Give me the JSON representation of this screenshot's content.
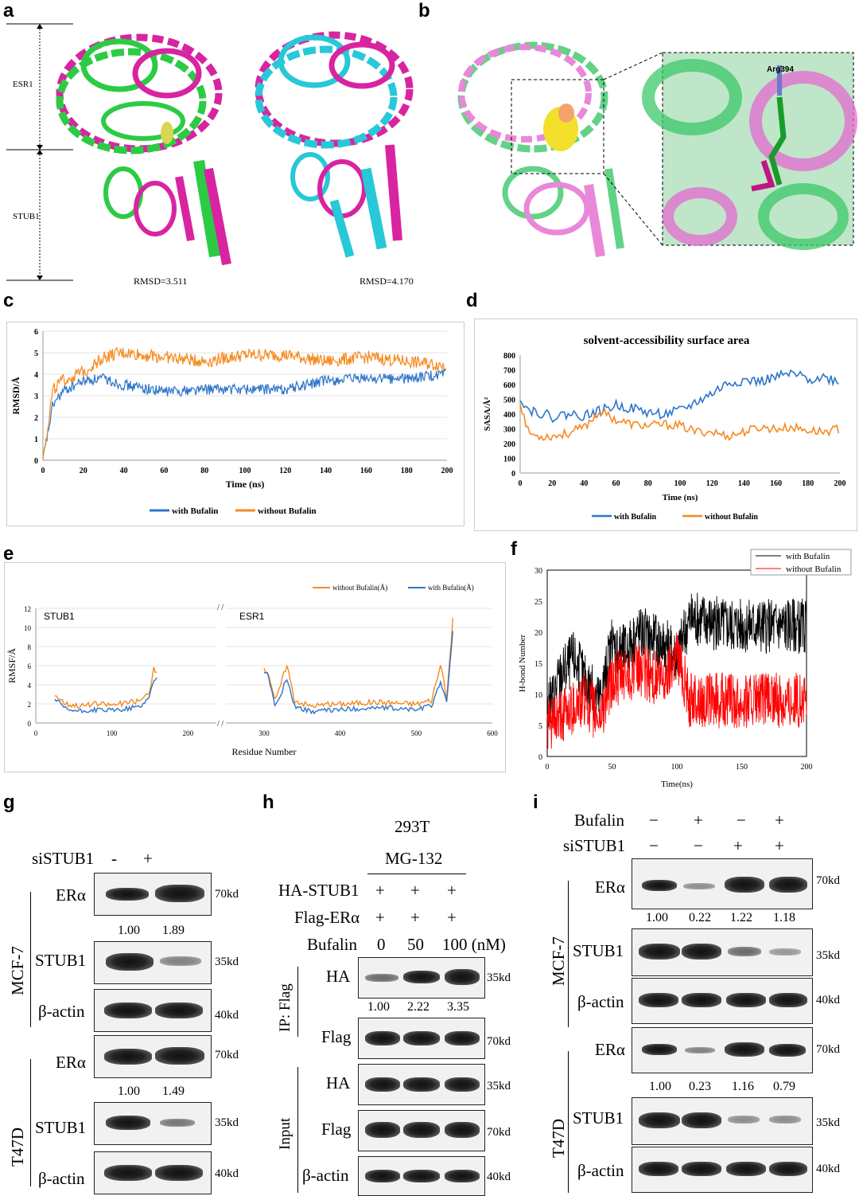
{
  "panels": {
    "a": "a",
    "b": "b",
    "c": "c",
    "d": "d",
    "e": "e",
    "f": "f",
    "g": "g",
    "h": "h",
    "i": "i"
  },
  "panel_a": {
    "label_esr1": "ESR1",
    "label_stub1": "STUB1",
    "rmsd_left": "RMSD=3.511",
    "rmsd_right": "RMSD=4.170"
  },
  "panel_b": {
    "residue": "Arg394"
  },
  "colors": {
    "blue": "#2e75c9",
    "orange": "#f58a1f",
    "black": "#000000",
    "red": "#ff0000",
    "green": "#21c93a",
    "magenta": "#d6199c",
    "cyan": "#1cc6d6"
  },
  "chart_data": [
    {
      "id": "c",
      "type": "line",
      "title": "",
      "xlabel": "Time (ns)",
      "ylabel": "RMSD/Å",
      "xlim": [
        0,
        200
      ],
      "ylim": [
        0,
        6
      ],
      "xticks": [
        0,
        20,
        40,
        60,
        80,
        100,
        120,
        140,
        160,
        180,
        200
      ],
      "yticks": [
        0,
        1,
        2,
        3,
        4,
        5,
        6
      ],
      "series": [
        {
          "name": "with Bufalin",
          "x": [
            0,
            5,
            10,
            20,
            30,
            40,
            60,
            80,
            100,
            120,
            140,
            160,
            180,
            200
          ],
          "y": [
            0,
            2.6,
            3.2,
            3.7,
            3.8,
            3.5,
            3.2,
            3.3,
            3.3,
            3.3,
            3.7,
            3.8,
            3.8,
            4.0
          ]
        },
        {
          "name": "without Bufalin",
          "x": [
            0,
            5,
            10,
            20,
            30,
            40,
            60,
            80,
            100,
            120,
            140,
            160,
            180,
            200
          ],
          "y": [
            0,
            3.3,
            3.7,
            4.1,
            4.8,
            5.0,
            4.8,
            4.6,
            4.9,
            4.9,
            4.6,
            4.8,
            4.6,
            4.4
          ]
        }
      ]
    },
    {
      "id": "d",
      "type": "line",
      "title": "solvent-accessibility surface area",
      "xlabel": "Time (ns)",
      "ylabel": "SASA/Å²",
      "xlim": [
        0,
        200
      ],
      "ylim": [
        0,
        800
      ],
      "xticks": [
        0,
        20,
        40,
        60,
        80,
        100,
        120,
        140,
        160,
        180,
        200
      ],
      "yticks": [
        0,
        100,
        200,
        300,
        400,
        500,
        600,
        700,
        800
      ],
      "series": [
        {
          "name": "with Bufalin",
          "x": [
            0,
            5,
            10,
            20,
            30,
            40,
            50,
            60,
            70,
            80,
            90,
            100,
            110,
            120,
            130,
            140,
            150,
            160,
            170,
            180,
            190,
            200
          ],
          "y": [
            520,
            430,
            420,
            380,
            400,
            390,
            420,
            460,
            440,
            410,
            400,
            420,
            480,
            540,
            610,
            630,
            620,
            650,
            670,
            640,
            650,
            620
          ]
        },
        {
          "name": "without Bufalin",
          "x": [
            0,
            5,
            10,
            20,
            30,
            40,
            50,
            60,
            70,
            80,
            90,
            100,
            110,
            120,
            130,
            140,
            150,
            160,
            170,
            180,
            190,
            200
          ],
          "y": [
            480,
            280,
            250,
            250,
            270,
            310,
            420,
            360,
            330,
            320,
            330,
            320,
            280,
            280,
            250,
            280,
            310,
            300,
            310,
            290,
            280,
            300
          ]
        }
      ]
    },
    {
      "id": "e",
      "type": "line",
      "title": "",
      "xlabel": "Residue Number",
      "ylabel": "RMSF/Å",
      "xlim": [
        0,
        600
      ],
      "ylim": [
        0,
        12
      ],
      "xticks": [
        0,
        100,
        200,
        300,
        400,
        500,
        600
      ],
      "yticks": [
        0,
        2,
        4,
        6,
        8,
        10,
        12
      ],
      "segment_labels": [
        "STUB1",
        "ESR1"
      ],
      "series": [
        {
          "name": "without Bufalin(Å)",
          "x": [
            25,
            40,
            60,
            80,
            100,
            120,
            140,
            150,
            155,
            305,
            315,
            330,
            340,
            360,
            400,
            450,
            500,
            520,
            532,
            540,
            548
          ],
          "y": [
            3.0,
            2.0,
            1.8,
            2.0,
            1.9,
            2.1,
            2.4,
            3.5,
            5.6,
            5.5,
            2.2,
            6.2,
            2.4,
            1.8,
            2.0,
            2.2,
            2.0,
            2.4,
            6.0,
            2.5,
            10.8
          ]
        },
        {
          "name": "with Bufalin(Å)",
          "x": [
            25,
            40,
            60,
            80,
            100,
            120,
            140,
            150,
            155,
            305,
            315,
            330,
            340,
            360,
            400,
            450,
            500,
            520,
            532,
            540,
            548
          ],
          "y": [
            2.5,
            1.4,
            1.2,
            1.4,
            1.3,
            1.5,
            1.8,
            3.0,
            4.6,
            5.2,
            1.6,
            4.7,
            1.8,
            1.2,
            1.4,
            1.6,
            1.4,
            1.8,
            4.4,
            2.0,
            9.6
          ]
        }
      ]
    },
    {
      "id": "f",
      "type": "line",
      "title": "",
      "xlabel": "Time(ns)",
      "ylabel": "H-bond Number",
      "xlim": [
        0,
        200
      ],
      "ylim": [
        0,
        30
      ],
      "xticks": [
        0,
        50,
        100,
        150,
        200
      ],
      "yticks": [
        0,
        5,
        10,
        15,
        20,
        25,
        30
      ],
      "series": [
        {
          "name": "with Bufalin",
          "x": [
            0,
            10,
            20,
            30,
            40,
            50,
            60,
            70,
            80,
            90,
            100,
            110,
            120,
            140,
            160,
            180,
            200
          ],
          "y": [
            7,
            13,
            16,
            12,
            9,
            18,
            17,
            20,
            19,
            18,
            16,
            22,
            22,
            21,
            21,
            21,
            21
          ]
        },
        {
          "name": "without Bufalin",
          "x": [
            0,
            10,
            20,
            30,
            40,
            50,
            60,
            70,
            80,
            90,
            100,
            110,
            120,
            140,
            160,
            180,
            200
          ],
          "y": [
            5,
            6,
            8,
            9,
            6,
            12,
            13,
            14,
            13,
            12,
            17,
            9,
            9,
            9,
            9,
            9,
            9
          ]
        }
      ]
    }
  ],
  "panel_g": {
    "treat_label": "siSTUB1",
    "treat": [
      "-",
      "+"
    ],
    "lanes_quant_mcf7": [
      "1.00",
      "1.89"
    ],
    "lanes_quant_t47d": [
      "1.00",
      "1.49"
    ],
    "cell_mcf7": "MCF-7",
    "cell_t47d": "T47D",
    "rows": [
      {
        "protein": "ERα",
        "kd": "70kd"
      },
      {
        "protein": "STUB1",
        "kd": "35kd"
      },
      {
        "protein": "β-actin",
        "kd": "40kd"
      },
      {
        "protein": "ERα",
        "kd": "70kd"
      },
      {
        "protein": "STUB1",
        "kd": "35kd"
      },
      {
        "protein": "β-actin",
        "kd": "40kd"
      }
    ]
  },
  "panel_h": {
    "cell": "293T",
    "treatment": "MG-132",
    "conds": [
      {
        "label": "HA-STUB1",
        "vals": [
          "+",
          "+",
          "+"
        ]
      },
      {
        "label": "Flag-ERα",
        "vals": [
          "+",
          "+",
          "+"
        ]
      },
      {
        "label": "Bufalin",
        "vals": [
          "0",
          "50",
          "100 (nM)"
        ]
      }
    ],
    "ip_label": "IP: Flag",
    "input_label": "Input",
    "quant": [
      "1.00",
      "2.22",
      "3.35"
    ],
    "rows": [
      {
        "protein": "HA",
        "kd": "35kd"
      },
      {
        "protein": "Flag",
        "kd": "70kd"
      },
      {
        "protein": "HA",
        "kd": "35kd"
      },
      {
        "protein": "Flag",
        "kd": "70kd"
      },
      {
        "protein": "β-actin",
        "kd": "40kd"
      }
    ]
  },
  "panel_i": {
    "conds": [
      {
        "label": "Bufalin",
        "vals": [
          "−",
          "+",
          "−",
          "+"
        ]
      },
      {
        "label": "siSTUB1",
        "vals": [
          "−",
          "−",
          "+",
          "+"
        ]
      }
    ],
    "cell_mcf7": "MCF-7",
    "cell_t47d": "T47D",
    "quant_mcf7": [
      "1.00",
      "0.22",
      "1.22",
      "1.18"
    ],
    "quant_t47d": [
      "1.00",
      "0.23",
      "1.16",
      "0.79"
    ],
    "rows": [
      {
        "protein": "ERα",
        "kd": "70kd"
      },
      {
        "protein": "STUB1",
        "kd": "35kd"
      },
      {
        "protein": "β-actin",
        "kd": "40kd"
      },
      {
        "protein": "ERα",
        "kd": "70kd"
      },
      {
        "protein": "STUB1",
        "kd": "35kd"
      },
      {
        "protein": "β-actin",
        "kd": "40kd"
      }
    ]
  }
}
